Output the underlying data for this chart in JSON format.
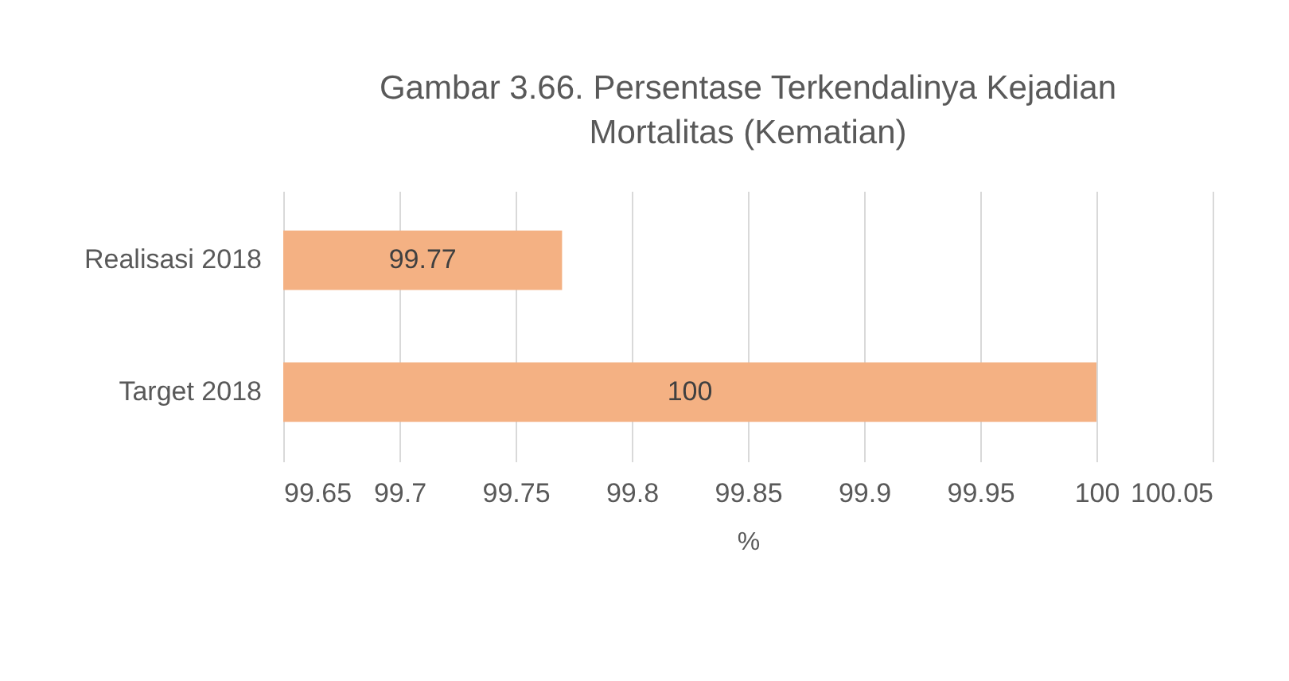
{
  "chart_data": {
    "type": "bar",
    "orientation": "horizontal",
    "title": "Gambar 3.66. Persentase Terkendalinya Kejadian Mortalitas (Kematian)",
    "xlabel": "%",
    "categories": [
      "Realisasi 2018",
      "Target 2018"
    ],
    "values": [
      99.77,
      100
    ],
    "color": "#f4b183",
    "xlim": [
      99.65,
      100.05
    ],
    "xticks": [
      99.65,
      99.7,
      99.75,
      99.8,
      99.85,
      99.9,
      99.95,
      100,
      100.05
    ],
    "grid": "x",
    "data_labels": true
  }
}
